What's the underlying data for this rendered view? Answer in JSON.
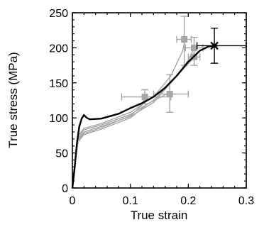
{
  "chart_data": {
    "type": "line",
    "title": "",
    "xlabel": "True strain",
    "ylabel": "True stress (MPa)",
    "xlim": [
      0,
      0.3
    ],
    "ylim": [
      0,
      250
    ],
    "x_ticks": [
      0,
      0.1,
      0.2,
      0.3
    ],
    "x_tick_labels": [
      "0",
      "0.1",
      "0.2",
      "0.3"
    ],
    "y_ticks": [
      0,
      50,
      100,
      150,
      200,
      250
    ],
    "y_tick_labels": [
      "0",
      "50",
      "100",
      "150",
      "200",
      "250"
    ],
    "grid": false,
    "legend": "none",
    "colors": {
      "highlight": "#000000",
      "others": "#a6a6a6"
    },
    "series": [
      {
        "highlight": true,
        "points": [
          [
            0,
            0
          ],
          [
            0.004,
            30
          ],
          [
            0.008,
            65
          ],
          [
            0.012,
            88
          ],
          [
            0.016,
            99
          ],
          [
            0.02,
            104
          ],
          [
            0.025,
            100
          ],
          [
            0.03,
            98
          ],
          [
            0.05,
            99
          ],
          [
            0.08,
            106
          ],
          [
            0.1,
            114
          ],
          [
            0.12,
            121
          ],
          [
            0.14,
            130
          ],
          [
            0.16,
            143
          ],
          [
            0.18,
            160
          ],
          [
            0.2,
            180
          ],
          [
            0.22,
            196
          ],
          [
            0.235,
            202
          ],
          [
            0.25,
            203
          ]
        ],
        "endpoint": {
          "x": 0.245,
          "y": 203,
          "xerr": [
            0.215,
            0.3
          ],
          "yerr": [
            178,
            228
          ]
        }
      },
      {
        "highlight": false,
        "points": [
          [
            0,
            0
          ],
          [
            0.005,
            45
          ],
          [
            0.01,
            75
          ],
          [
            0.02,
            85
          ],
          [
            0.05,
            92
          ],
          [
            0.1,
            108
          ],
          [
            0.14,
            130
          ],
          [
            0.17,
            160
          ],
          [
            0.19,
            195
          ],
          [
            0.195,
            212
          ]
        ],
        "endpoint": {
          "x": 0.193,
          "y": 212,
          "xerr": [
            0.18,
            0.205
          ],
          "yerr": [
            175,
            245
          ]
        }
      },
      {
        "highlight": false,
        "points": [
          [
            0,
            0
          ],
          [
            0.005,
            42
          ],
          [
            0.01,
            72
          ],
          [
            0.02,
            83
          ],
          [
            0.05,
            90
          ],
          [
            0.1,
            105
          ],
          [
            0.14,
            125
          ],
          [
            0.17,
            150
          ],
          [
            0.2,
            178
          ],
          [
            0.21,
            185
          ]
        ],
        "endpoint": {
          "x": 0.21,
          "y": 187,
          "xerr": [
            0.2,
            0.22
          ],
          "yerr": [
            175,
            198
          ]
        }
      },
      {
        "highlight": false,
        "points": [
          [
            0,
            0
          ],
          [
            0.005,
            40
          ],
          [
            0.01,
            70
          ],
          [
            0.02,
            80
          ],
          [
            0.05,
            88
          ],
          [
            0.1,
            102
          ],
          [
            0.14,
            122
          ],
          [
            0.17,
            150
          ],
          [
            0.2,
            182
          ],
          [
            0.21,
            200
          ]
        ],
        "endpoint": {
          "x": 0.21,
          "y": 200,
          "xerr": [
            0.195,
            0.225
          ],
          "yerr": [
            185,
            215
          ]
        }
      },
      {
        "highlight": false,
        "points": [
          [
            0,
            0
          ],
          [
            0.005,
            40
          ],
          [
            0.01,
            68
          ],
          [
            0.02,
            78
          ],
          [
            0.05,
            86
          ],
          [
            0.1,
            103
          ],
          [
            0.12,
            118
          ],
          [
            0.125,
            130
          ]
        ],
        "endpoint": {
          "x": 0.125,
          "y": 130,
          "xerr": [
            0.085,
            0.17
          ],
          "yerr": [
            120,
            140
          ]
        }
      },
      {
        "highlight": false,
        "points": [
          [
            0,
            0
          ],
          [
            0.005,
            38
          ],
          [
            0.01,
            66
          ],
          [
            0.02,
            76
          ],
          [
            0.05,
            84
          ],
          [
            0.1,
            100
          ],
          [
            0.13,
            120
          ],
          [
            0.16,
            133
          ],
          [
            0.168,
            134
          ]
        ],
        "endpoint": {
          "x": 0.168,
          "y": 134,
          "xerr": [
            0.14,
            0.2
          ],
          "yerr": [
            108,
            162
          ]
        }
      }
    ]
  }
}
